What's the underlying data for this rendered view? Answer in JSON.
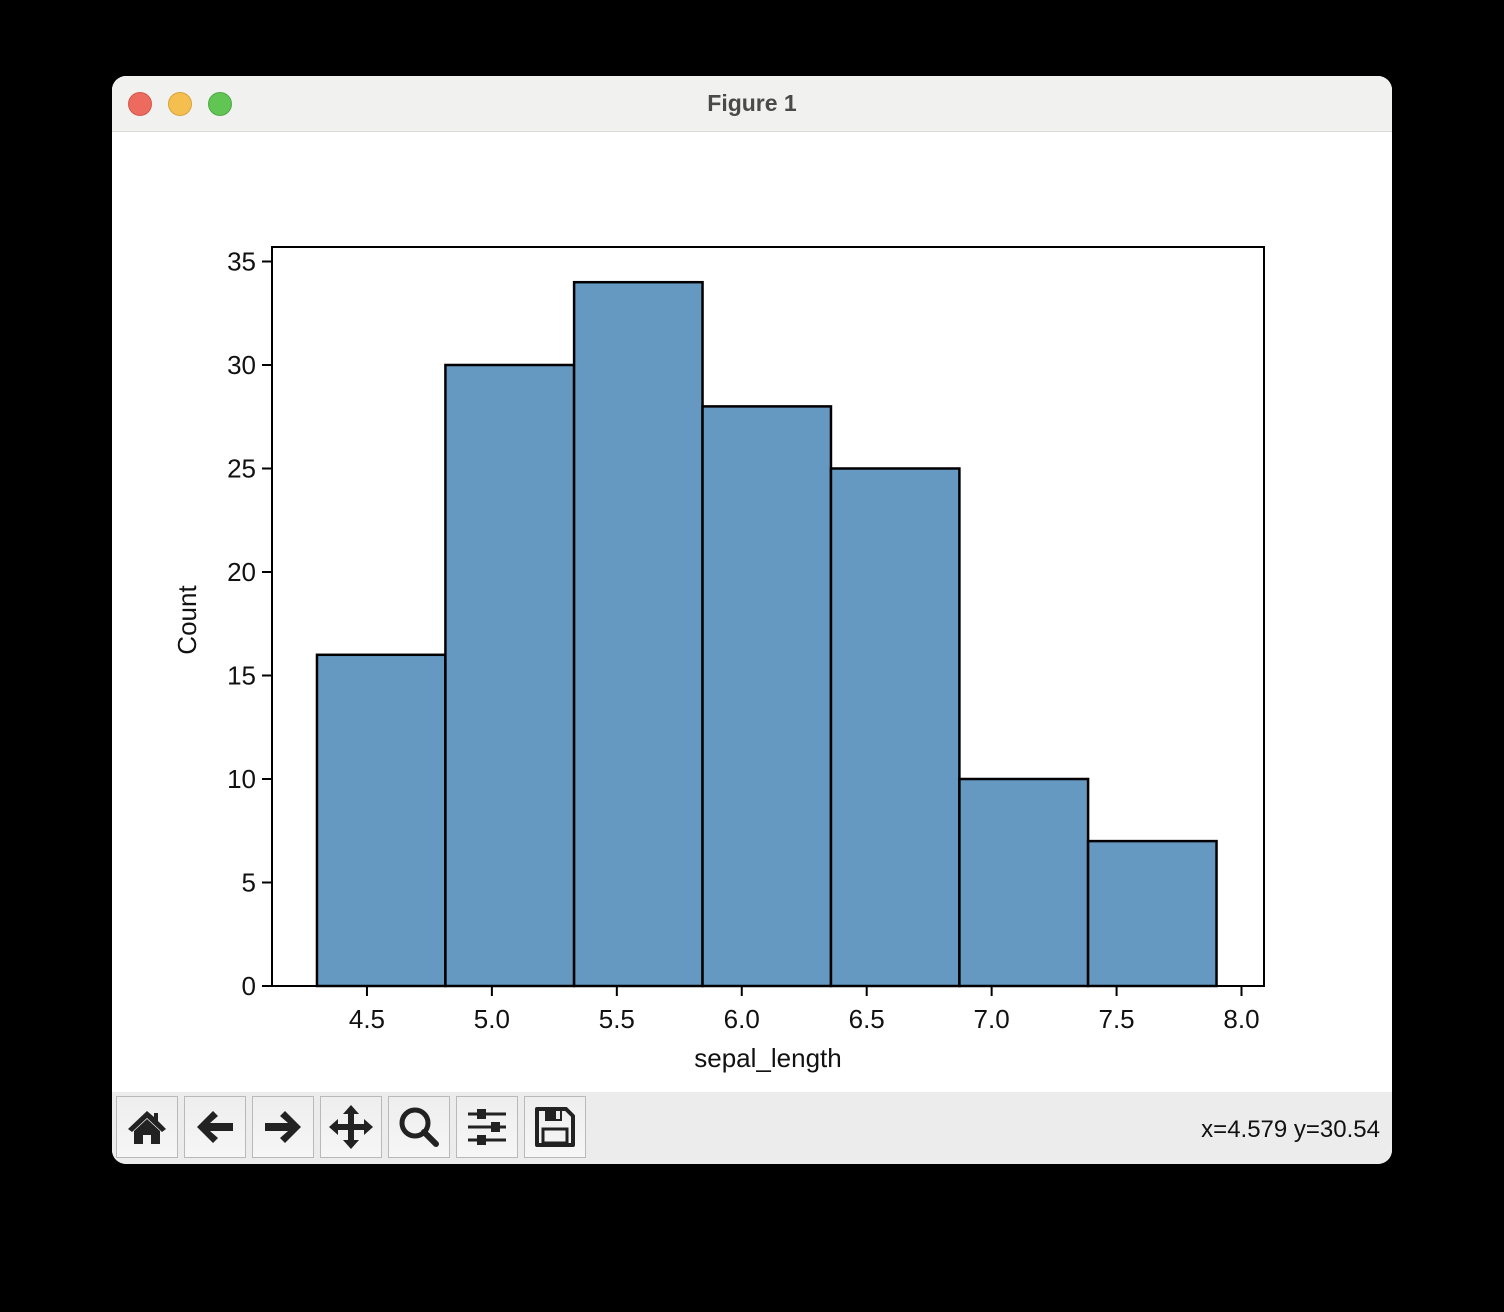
{
  "window": {
    "title": "Figure 1",
    "traffic_lights": [
      "close",
      "minimize",
      "zoom"
    ]
  },
  "toolbar": {
    "buttons": [
      {
        "name": "home",
        "icon": "home-icon"
      },
      {
        "name": "back",
        "icon": "arrow-left-icon"
      },
      {
        "name": "forward",
        "icon": "arrow-right-icon"
      },
      {
        "name": "pan",
        "icon": "move-icon"
      },
      {
        "name": "zoom",
        "icon": "magnifier-icon"
      },
      {
        "name": "configure-subplots",
        "icon": "sliders-icon"
      },
      {
        "name": "save",
        "icon": "floppy-disk-icon"
      }
    ],
    "coordinates": "x=4.579 y=30.54"
  },
  "colors": {
    "bar_fill": "#6699c2",
    "bar_edge": "#000000",
    "titlebar": "#f1f1f0",
    "toolbar": "#ececec"
  },
  "chart_data": {
    "type": "bar",
    "subtype": "histogram",
    "title": "",
    "xlabel": "sepal_length",
    "ylabel": "Count",
    "bin_edges": [
      4.3,
      4.814,
      5.329,
      5.843,
      6.357,
      6.871,
      7.386,
      7.9
    ],
    "categories": [
      "4.30–4.81",
      "4.81–5.33",
      "5.33–5.84",
      "5.84–6.36",
      "6.36–6.87",
      "6.87–7.39",
      "7.39–7.90"
    ],
    "values": [
      16,
      30,
      34,
      28,
      25,
      10,
      7
    ],
    "xlim": [
      4.12,
      8.09
    ],
    "ylim": [
      0,
      35.7
    ],
    "xticks": [
      "4.5",
      "5.0",
      "5.5",
      "6.0",
      "6.5",
      "7.0",
      "7.5",
      "8.0"
    ],
    "xtick_values": [
      4.5,
      5.0,
      5.5,
      6.0,
      6.5,
      7.0,
      7.5,
      8.0
    ],
    "yticks": [
      "0",
      "5",
      "10",
      "15",
      "20",
      "25",
      "30",
      "35"
    ],
    "ytick_values": [
      0,
      5,
      10,
      15,
      20,
      25,
      30,
      35
    ],
    "grid": false,
    "legend": null
  }
}
